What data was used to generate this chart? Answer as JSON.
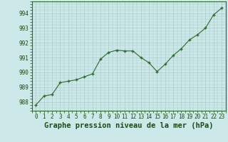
{
  "x": [
    0,
    1,
    2,
    3,
    4,
    5,
    6,
    7,
    8,
    9,
    10,
    11,
    12,
    13,
    14,
    15,
    16,
    17,
    18,
    19,
    20,
    21,
    22,
    23
  ],
  "y": [
    987.8,
    988.4,
    988.5,
    989.3,
    989.4,
    989.5,
    989.7,
    989.9,
    990.9,
    991.35,
    991.5,
    991.45,
    991.45,
    991.0,
    990.65,
    990.05,
    990.55,
    991.15,
    991.6,
    992.2,
    992.55,
    993.0,
    993.9,
    994.35
  ],
  "line_color": "#2d6a2d",
  "marker": "P",
  "marker_size": 2.5,
  "background_color": "#cce8e8",
  "grid_color": "#aacaca",
  "xlabel": "Graphe pression niveau de la mer (hPa)",
  "xlabel_fontsize": 7.5,
  "ylabel_ticks": [
    988,
    989,
    990,
    991,
    992,
    993,
    994
  ],
  "xlim": [
    -0.5,
    23.5
  ],
  "ylim": [
    987.4,
    994.8
  ],
  "xticks": [
    0,
    1,
    2,
    3,
    4,
    5,
    6,
    7,
    8,
    9,
    10,
    11,
    12,
    13,
    14,
    15,
    16,
    17,
    18,
    19,
    20,
    21,
    22,
    23
  ],
  "tick_fontsize": 5.5,
  "label_color": "#1a4a1a"
}
